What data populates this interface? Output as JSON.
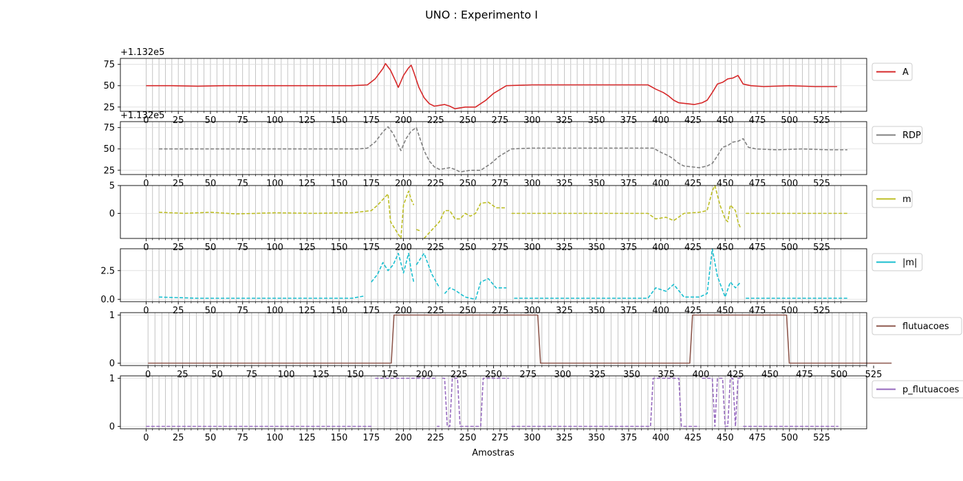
{
  "figure": {
    "title": "UNO : Experimento I",
    "xlabel": "Amostras",
    "offset_label": "+1.132e5"
  },
  "chart_data": [
    {
      "type": "line",
      "name": "A",
      "color": "#d62728",
      "linestyle": "solid",
      "offset": "+1.132e5",
      "xlim": [
        -20,
        560
      ],
      "ylim": [
        20,
        82
      ],
      "yticks": [
        25,
        50,
        75
      ],
      "xticks": [
        0,
        25,
        50,
        75,
        100,
        125,
        150,
        175,
        200,
        225,
        250,
        275,
        300,
        325,
        350,
        375,
        400,
        425,
        450,
        475,
        500,
        525
      ],
      "grid": true,
      "legend": "right",
      "points": [
        [
          0,
          50
        ],
        [
          20,
          50
        ],
        [
          40,
          49.5
        ],
        [
          60,
          50
        ],
        [
          80,
          50
        ],
        [
          100,
          50
        ],
        [
          120,
          50
        ],
        [
          140,
          50
        ],
        [
          160,
          50
        ],
        [
          172,
          51
        ],
        [
          178,
          58
        ],
        [
          184,
          70
        ],
        [
          186,
          76
        ],
        [
          190,
          68
        ],
        [
          194,
          55
        ],
        [
          196,
          48
        ],
        [
          200,
          62
        ],
        [
          204,
          71
        ],
        [
          206,
          74
        ],
        [
          208,
          66
        ],
        [
          212,
          48
        ],
        [
          216,
          36
        ],
        [
          220,
          29
        ],
        [
          224,
          26
        ],
        [
          228,
          27
        ],
        [
          232,
          28
        ],
        [
          236,
          26
        ],
        [
          240,
          23
        ],
        [
          248,
          25
        ],
        [
          256,
          25
        ],
        [
          264,
          33
        ],
        [
          270,
          41
        ],
        [
          280,
          50
        ],
        [
          300,
          51
        ],
        [
          320,
          51
        ],
        [
          340,
          51
        ],
        [
          360,
          51
        ],
        [
          380,
          51
        ],
        [
          390,
          51
        ],
        [
          396,
          46
        ],
        [
          402,
          42
        ],
        [
          406,
          38
        ],
        [
          410,
          33
        ],
        [
          414,
          30
        ],
        [
          420,
          29
        ],
        [
          426,
          28
        ],
        [
          432,
          30
        ],
        [
          436,
          33
        ],
        [
          440,
          42
        ],
        [
          444,
          52
        ],
        [
          448,
          54
        ],
        [
          452,
          58
        ],
        [
          456,
          59
        ],
        [
          460,
          62
        ],
        [
          464,
          52
        ],
        [
          470,
          50
        ],
        [
          480,
          49
        ],
        [
          500,
          50
        ],
        [
          520,
          49
        ],
        [
          537,
          49
        ]
      ]
    },
    {
      "type": "line",
      "name": "RDP",
      "color": "#7f7f7f",
      "linestyle": "dashed",
      "offset": "+1.132e5",
      "xlim": [
        -20,
        560
      ],
      "ylim": [
        20,
        82
      ],
      "yticks": [
        25,
        50,
        75
      ],
      "xticks": [
        0,
        25,
        50,
        75,
        100,
        125,
        150,
        175,
        200,
        225,
        250,
        275,
        300,
        325,
        350,
        375,
        400,
        425,
        450,
        475,
        500,
        525
      ],
      "grid": true,
      "legend": "right",
      "points": [
        [
          10,
          50
        ],
        [
          30,
          50
        ],
        [
          60,
          50
        ],
        [
          100,
          50
        ],
        [
          140,
          50
        ],
        [
          165,
          50
        ],
        [
          172,
          51
        ],
        [
          178,
          58
        ],
        [
          184,
          70
        ],
        [
          188,
          76
        ],
        [
          192,
          68
        ],
        [
          196,
          55
        ],
        [
          198,
          48
        ],
        [
          202,
          62
        ],
        [
          206,
          71
        ],
        [
          210,
          75
        ],
        [
          212,
          66
        ],
        [
          216,
          48
        ],
        [
          220,
          36
        ],
        [
          224,
          29
        ],
        [
          228,
          26
        ],
        [
          232,
          27
        ],
        [
          236,
          28
        ],
        [
          240,
          26
        ],
        [
          244,
          23
        ],
        [
          252,
          25
        ],
        [
          260,
          25
        ],
        [
          268,
          33
        ],
        [
          274,
          41
        ],
        [
          284,
          50
        ],
        [
          300,
          51
        ],
        [
          320,
          51
        ],
        [
          340,
          51
        ],
        [
          360,
          51
        ],
        [
          380,
          51
        ],
        [
          394,
          51
        ],
        [
          400,
          46
        ],
        [
          406,
          42
        ],
        [
          410,
          38
        ],
        [
          414,
          33
        ],
        [
          418,
          30
        ],
        [
          424,
          29
        ],
        [
          430,
          28
        ],
        [
          436,
          30
        ],
        [
          440,
          33
        ],
        [
          444,
          42
        ],
        [
          448,
          52
        ],
        [
          452,
          54
        ],
        [
          456,
          58
        ],
        [
          460,
          59
        ],
        [
          464,
          62
        ],
        [
          468,
          52
        ],
        [
          474,
          50
        ],
        [
          490,
          49
        ],
        [
          510,
          50
        ],
        [
          530,
          49
        ],
        [
          545,
          49
        ]
      ]
    },
    {
      "type": "line",
      "name": "m",
      "color": "#bcbd22",
      "linestyle": "dashed",
      "xlim": [
        -20,
        560
      ],
      "ylim": [
        -4.5,
        5
      ],
      "yticks": [
        0,
        5
      ],
      "xticks": [
        0,
        25,
        50,
        75,
        100,
        125,
        150,
        175,
        200,
        225,
        250,
        275,
        300,
        325,
        350,
        375,
        400,
        425,
        450,
        475,
        500,
        525
      ],
      "grid": true,
      "legend": "right",
      "segments": [
        [
          [
            10,
            0.2
          ],
          [
            30,
            0
          ],
          [
            50,
            0.2
          ],
          [
            70,
            -0.1
          ],
          [
            100,
            0.1
          ],
          [
            130,
            0
          ],
          [
            160,
            0.1
          ],
          [
            175,
            0.5
          ],
          [
            180,
            1.5
          ],
          [
            184,
            2.5
          ],
          [
            188,
            3.5
          ],
          [
            190,
            -1.5
          ],
          [
            194,
            -3
          ],
          [
            198,
            -4.5
          ],
          [
            200,
            1.5
          ],
          [
            204,
            4
          ],
          [
            206,
            2.5
          ],
          [
            208,
            1.5
          ]
        ],
        [
          [
            210,
            -2.9
          ],
          [
            214,
            -3.2
          ]
        ],
        [
          [
            216,
            -4.5
          ],
          [
            222,
            -3
          ],
          [
            228,
            -1.5
          ],
          [
            232,
            0.5
          ],
          [
            236,
            0.5
          ],
          [
            240,
            -1
          ],
          [
            244,
            -1
          ],
          [
            248,
            0
          ],
          [
            252,
            -0.5
          ],
          [
            256,
            0
          ],
          [
            260,
            1.8
          ],
          [
            266,
            2
          ],
          [
            272,
            1
          ],
          [
            280,
            1
          ]
        ],
        [
          [
            284,
            0
          ],
          [
            320,
            0
          ],
          [
            360,
            0
          ],
          [
            390,
            0
          ],
          [
            396,
            -1
          ],
          [
            404,
            -0.7
          ],
          [
            410,
            -1.3
          ],
          [
            418,
            0
          ],
          [
            430,
            0.2
          ],
          [
            436,
            0.5
          ],
          [
            440,
            4
          ],
          [
            442,
            5
          ],
          [
            446,
            1.5
          ],
          [
            450,
            -1
          ],
          [
            452,
            -1.5
          ],
          [
            454,
            1.5
          ],
          [
            458,
            0.5
          ],
          [
            460,
            -1.5
          ],
          [
            462,
            -2.7
          ]
        ],
        [
          [
            466,
            0
          ],
          [
            500,
            0
          ],
          [
            530,
            0
          ],
          [
            545,
            0
          ]
        ]
      ]
    },
    {
      "type": "line",
      "name": "|m|",
      "color": "#17becf",
      "linestyle": "dashed",
      "xlim": [
        -20,
        560
      ],
      "ylim": [
        -0.2,
        4.4
      ],
      "yticks": [
        0.0,
        2.5
      ],
      "xticks": [
        0,
        25,
        50,
        75,
        100,
        125,
        150,
        175,
        200,
        225,
        250,
        275,
        300,
        325,
        350,
        375,
        400,
        425,
        450,
        475,
        500,
        525
      ],
      "grid": true,
      "legend": "right",
      "segments": [
        [
          [
            10,
            0.2
          ],
          [
            40,
            0.1
          ],
          [
            80,
            0.1
          ],
          [
            120,
            0.1
          ],
          [
            160,
            0.1
          ],
          [
            170,
            0.3
          ]
        ],
        [
          [
            175,
            1.5
          ],
          [
            180,
            2.2
          ],
          [
            184,
            3.2
          ],
          [
            188,
            2.5
          ],
          [
            192,
            3
          ],
          [
            196,
            4
          ],
          [
            200,
            2.3
          ],
          [
            204,
            4
          ],
          [
            206,
            2.5
          ],
          [
            208,
            1.5
          ]
        ],
        [
          [
            210,
            3
          ],
          [
            216,
            4
          ],
          [
            222,
            2.2
          ],
          [
            228,
            1
          ]
        ],
        [
          [
            232,
            0.5
          ],
          [
            236,
            1
          ],
          [
            240,
            0.8
          ],
          [
            248,
            0.2
          ],
          [
            256,
            0
          ],
          [
            260,
            1.5
          ],
          [
            266,
            1.8
          ],
          [
            272,
            1
          ],
          [
            280,
            1
          ]
        ],
        [
          [
            286,
            0.1
          ],
          [
            320,
            0.1
          ],
          [
            360,
            0.1
          ],
          [
            390,
            0.1
          ],
          [
            396,
            1
          ],
          [
            404,
            0.7
          ],
          [
            410,
            1.3
          ],
          [
            418,
            0.2
          ],
          [
            430,
            0.2
          ],
          [
            436,
            0.5
          ],
          [
            440,
            4.4
          ],
          [
            444,
            2
          ],
          [
            450,
            0.2
          ],
          [
            454,
            1.5
          ],
          [
            458,
            1
          ],
          [
            462,
            1.5
          ]
        ],
        [
          [
            466,
            0.1
          ],
          [
            500,
            0.1
          ],
          [
            530,
            0.1
          ],
          [
            545,
            0.1
          ]
        ]
      ]
    },
    {
      "type": "line",
      "name": "flutuacoes",
      "color": "#8c564b",
      "linestyle": "solid",
      "xlim": [
        -20,
        520
      ],
      "ylim": [
        -0.05,
        1.05
      ],
      "yticks": [
        0,
        1
      ],
      "xticks": [
        0,
        25,
        50,
        75,
        100,
        125,
        150,
        175,
        200,
        225,
        250,
        275,
        300,
        325,
        350,
        375,
        400,
        425,
        450,
        475,
        500,
        525
      ],
      "grid": true,
      "legend": "right",
      "points": [
        [
          0,
          0
        ],
        [
          176,
          0
        ],
        [
          178,
          1
        ],
        [
          282,
          1
        ],
        [
          284,
          0
        ],
        [
          392,
          0
        ],
        [
          394,
          1
        ],
        [
          462,
          1
        ],
        [
          464,
          0
        ],
        [
          538,
          0
        ]
      ]
    },
    {
      "type": "line",
      "name": "p_flutuacoes",
      "color": "#9467bd",
      "linestyle": "dashed",
      "xlim": [
        -20,
        560
      ],
      "ylim": [
        -0.05,
        1.05
      ],
      "yticks": [
        0,
        1
      ],
      "xticks": [
        0,
        25,
        50,
        75,
        100,
        125,
        150,
        175,
        200,
        225,
        250,
        275,
        300,
        325,
        350,
        375,
        400,
        425,
        450,
        475,
        500,
        525
      ],
      "grid": true,
      "legend": "right",
      "segments": [
        [
          [
            0,
            0
          ],
          [
            60,
            0
          ],
          [
            120,
            0
          ],
          [
            176,
            0
          ]
        ],
        [
          [
            178,
            1
          ],
          [
            200,
            1
          ],
          [
            226,
            1
          ]
        ],
        [
          [
            226,
            0
          ],
          [
            228,
            0
          ]
        ],
        [
          [
            230,
            1
          ],
          [
            232,
            1
          ],
          [
            234,
            0
          ],
          [
            236,
            0
          ],
          [
            238,
            1
          ],
          [
            242,
            1
          ],
          [
            244,
            0
          ],
          [
            260,
            0
          ],
          [
            262,
            1
          ],
          [
            282,
            1
          ]
        ],
        [
          [
            284,
            0
          ],
          [
            340,
            0
          ],
          [
            392,
            0
          ],
          [
            394,
            1
          ],
          [
            414,
            1
          ],
          [
            416,
            0
          ],
          [
            430,
            0
          ]
        ],
        [
          [
            432,
            1
          ],
          [
            440,
            1
          ],
          [
            442,
            0
          ],
          [
            444,
            1
          ],
          [
            448,
            1
          ],
          [
            450,
            0
          ],
          [
            452,
            0
          ],
          [
            454,
            1
          ],
          [
            456,
            1
          ],
          [
            458,
            0
          ],
          [
            460,
            1
          ],
          [
            462,
            1
          ]
        ],
        [
          [
            464,
            0
          ],
          [
            500,
            0
          ],
          [
            538,
            0
          ]
        ]
      ]
    }
  ]
}
